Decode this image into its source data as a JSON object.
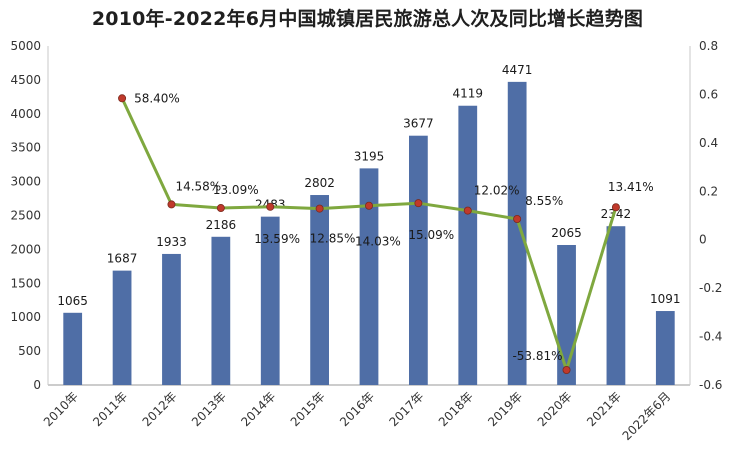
{
  "chart_data": {
    "type": "bar",
    "title": "2010年-2022年6月中国城镇居民旅游总人次及同比增长趋势图",
    "categories": [
      "2010年",
      "2011年",
      "2012年",
      "2013年",
      "2014年",
      "2015年",
      "2016年",
      "2017年",
      "2018年",
      "2019年",
      "2020年",
      "2021年",
      "2022年6月"
    ],
    "series": [
      {
        "type": "bar",
        "axis": "left",
        "color": "#4f6ea6",
        "values": [
          1065,
          1687,
          1933,
          2186,
          2483,
          2802,
          3195,
          3677,
          4119,
          4471,
          2065,
          2342,
          1091
        ],
        "labels": [
          "1065",
          "1687",
          "1933",
          "2186",
          "2483",
          "2802",
          "3195",
          "3677",
          "4119",
          "4471",
          "2065",
          "2342",
          "1091"
        ]
      },
      {
        "type": "line",
        "axis": "right",
        "color": "#7fa83f",
        "marker_color": "#c0392b",
        "values": [
          null,
          0.584,
          0.1458,
          0.1309,
          0.1359,
          0.1285,
          0.1403,
          0.1509,
          0.1202,
          0.0855,
          -0.5381,
          0.1341,
          null
        ],
        "labels": [
          "",
          "58.40%",
          "14.58%",
          "13.09%",
          "13.59%",
          "12.85%",
          "14.03%",
          "15.09%",
          "12.02%",
          "8.55%",
          "-53.81%",
          "13.41%",
          ""
        ]
      }
    ],
    "left_axis": {
      "ylim": [
        0,
        5000
      ],
      "ticks": [
        "0",
        "500",
        "1000",
        "1500",
        "2000",
        "2500",
        "3000",
        "3500",
        "4000",
        "4500",
        "5000"
      ]
    },
    "right_axis": {
      "ylim": [
        -0.6,
        0.8
      ],
      "ticks": [
        "-0.6",
        "-0.4",
        "-0.2",
        "0",
        "0.2",
        "0.4",
        "0.6",
        "0.8"
      ]
    },
    "grid": false,
    "legend": "none"
  }
}
